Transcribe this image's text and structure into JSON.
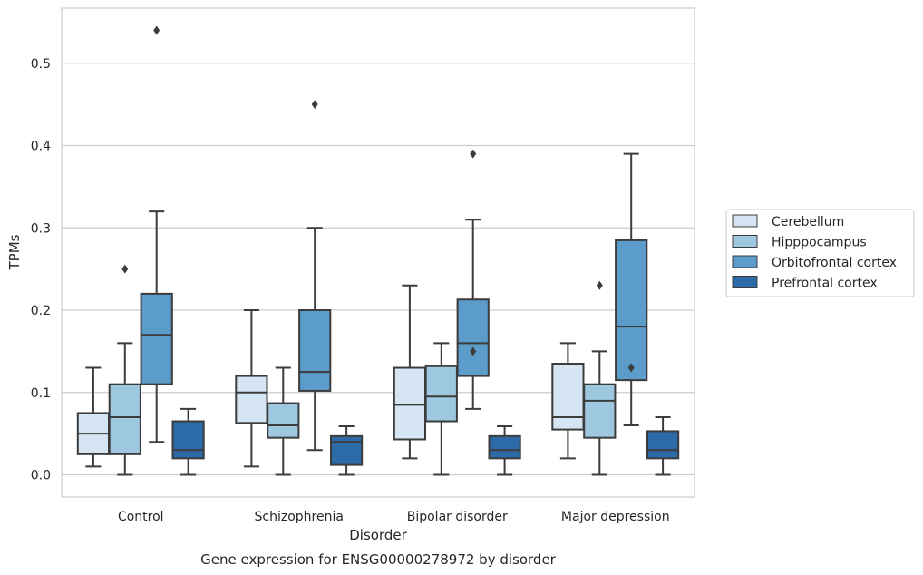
{
  "chart_data": {
    "type": "box",
    "title": "",
    "caption": "Gene expression for ENSG00000278972 by disorder",
    "xlabel": "Disorder",
    "ylabel": "TPMs",
    "ylim": [
      -0.027,
      0.567
    ],
    "yticks": [
      0.0,
      0.1,
      0.2,
      0.3,
      0.4,
      0.5
    ],
    "ytick_labels": [
      "0.0",
      "0.1",
      "0.2",
      "0.3",
      "0.4",
      "0.5"
    ],
    "grid": "horizontal",
    "legend_position": "right",
    "categories": [
      "Control",
      "Schizophrenia",
      "Bipolar disorder",
      "Major depression"
    ],
    "series": [
      {
        "name": "Cerebellum",
        "color": "#d6e5f3",
        "boxes": [
          {
            "whisker_low": 0.01,
            "q1": 0.025,
            "median": 0.05,
            "q3": 0.075,
            "whisker_high": 0.13,
            "outliers": []
          },
          {
            "whisker_low": 0.01,
            "q1": 0.063,
            "median": 0.1,
            "q3": 0.12,
            "whisker_high": 0.2,
            "outliers": []
          },
          {
            "whisker_low": 0.02,
            "q1": 0.043,
            "median": 0.085,
            "q3": 0.13,
            "whisker_high": 0.23,
            "outliers": []
          },
          {
            "whisker_low": 0.02,
            "q1": 0.055,
            "median": 0.07,
            "q3": 0.135,
            "whisker_high": 0.16,
            "outliers": []
          }
        ]
      },
      {
        "name": "Hipppocampus",
        "color": "#9ec7e0",
        "boxes": [
          {
            "whisker_low": 0.0,
            "q1": 0.025,
            "median": 0.07,
            "q3": 0.11,
            "whisker_high": 0.16,
            "outliers": [
              0.25
            ]
          },
          {
            "whisker_low": 0.0,
            "q1": 0.045,
            "median": 0.06,
            "q3": 0.087,
            "whisker_high": 0.13,
            "outliers": []
          },
          {
            "whisker_low": 0.0,
            "q1": 0.065,
            "median": 0.095,
            "q3": 0.132,
            "whisker_high": 0.16,
            "outliers": []
          },
          {
            "whisker_low": 0.0,
            "q1": 0.045,
            "median": 0.09,
            "q3": 0.11,
            "whisker_high": 0.15,
            "outliers": [
              0.23
            ]
          }
        ]
      },
      {
        "name": "Orbitofrontal cortex",
        "color": "#5b9cca",
        "boxes": [
          {
            "whisker_low": 0.04,
            "q1": 0.11,
            "median": 0.17,
            "q3": 0.22,
            "whisker_high": 0.32,
            "outliers": [
              0.54
            ]
          },
          {
            "whisker_low": 0.03,
            "q1": 0.102,
            "median": 0.125,
            "q3": 0.2,
            "whisker_high": 0.3,
            "outliers": [
              0.45
            ]
          },
          {
            "whisker_low": 0.08,
            "q1": 0.12,
            "median": 0.16,
            "q3": 0.213,
            "whisker_high": 0.31,
            "outliers": [
              0.39,
              0.15
            ]
          },
          {
            "whisker_low": 0.06,
            "q1": 0.115,
            "median": 0.18,
            "q3": 0.285,
            "whisker_high": 0.39,
            "outliers": [
              0.13
            ]
          }
        ]
      },
      {
        "name": "Prefrontal cortex",
        "color": "#2c6aa8",
        "boxes": [
          {
            "whisker_low": 0.0,
            "q1": 0.02,
            "median": 0.03,
            "q3": 0.065,
            "whisker_high": 0.08,
            "outliers": []
          },
          {
            "whisker_low": 0.0,
            "q1": 0.012,
            "median": 0.04,
            "q3": 0.047,
            "whisker_high": 0.059,
            "outliers": []
          },
          {
            "whisker_low": 0.0,
            "q1": 0.02,
            "median": 0.03,
            "q3": 0.047,
            "whisker_high": 0.059,
            "outliers": []
          },
          {
            "whisker_low": 0.0,
            "q1": 0.02,
            "median": 0.03,
            "q3": 0.053,
            "whisker_high": 0.07,
            "outliers": []
          }
        ]
      }
    ]
  }
}
